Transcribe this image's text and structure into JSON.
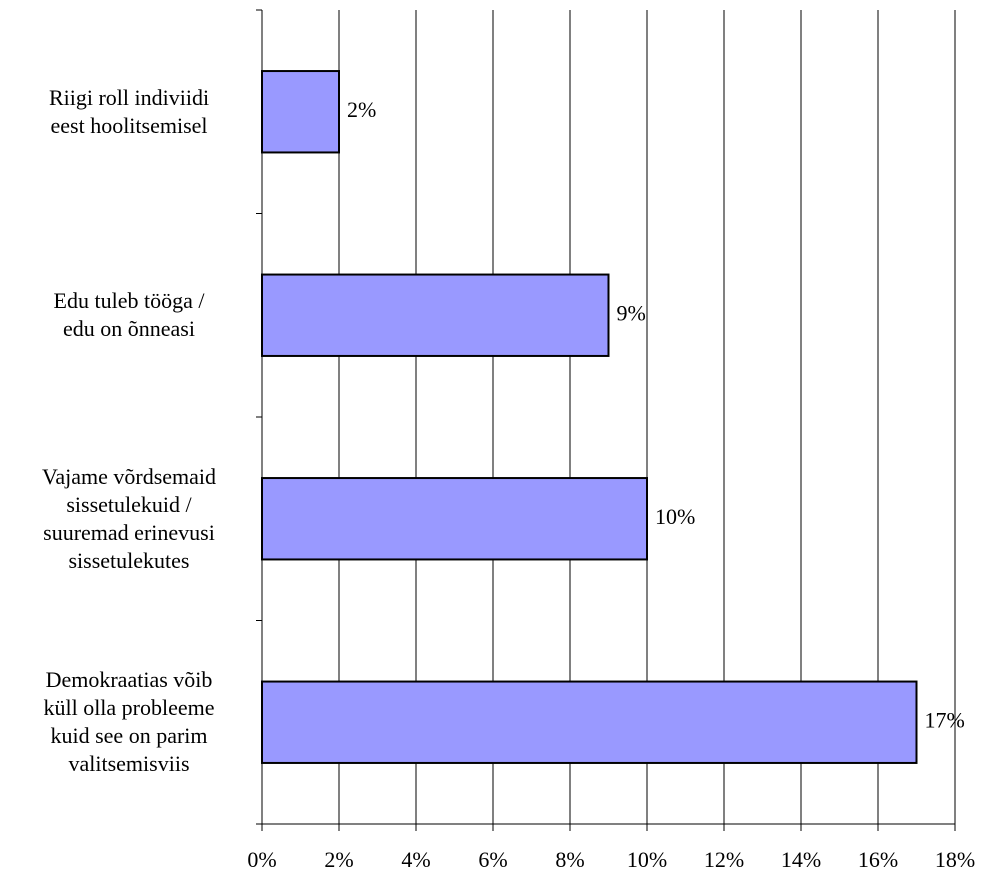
{
  "chart_data": {
    "type": "barh",
    "categories": [
      "Riigi roll indiviidi\neest hoolitsemisel",
      "Edu tuleb tööga /\nedu on õnneasi",
      "Vajame võrdsemaid\nsissetulekuid /\nsuuremad erinevusi\nsissetulekutes",
      "Demokraatias võib\nküll olla probleeme\nkuid see on parim\nvalitsemisviis"
    ],
    "values": [
      2,
      9,
      10,
      17
    ],
    "value_labels": [
      "2%",
      "9%",
      "10%",
      "17%"
    ],
    "color": "#9999ff",
    "xlim": [
      0,
      18
    ],
    "xticks": [
      {
        "value": 0,
        "label": "0%"
      },
      {
        "value": 2,
        "label": "2%"
      },
      {
        "value": 4,
        "label": "4%"
      },
      {
        "value": 6,
        "label": "6%"
      },
      {
        "value": 8,
        "label": "8%"
      },
      {
        "value": 10,
        "label": "10%"
      },
      {
        "value": 12,
        "label": "12%"
      },
      {
        "value": 14,
        "label": "14%"
      },
      {
        "value": 16,
        "label": "16%"
      },
      {
        "value": 18,
        "label": "18%"
      }
    ],
    "grid": true
  }
}
